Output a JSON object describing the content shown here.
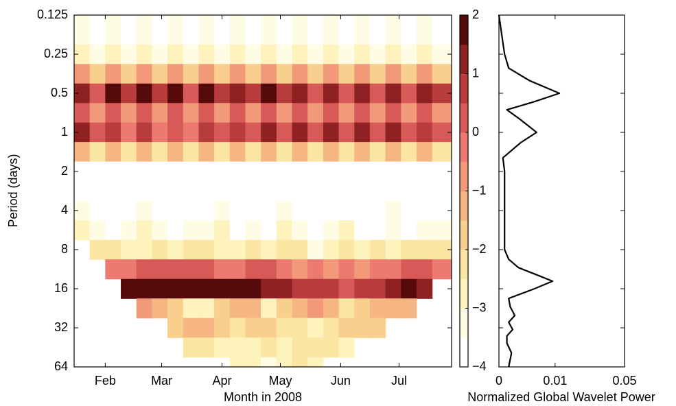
{
  "chart_data": [
    {
      "type": "heatmap",
      "x_label": "Month in 2008",
      "y_label": "Period (days)",
      "xlim": [
        16,
        210
      ],
      "xticks": [
        {
          "value": 32,
          "label": "Feb"
        },
        {
          "value": 61,
          "label": "Mar"
        },
        {
          "value": 92,
          "label": "Apr"
        },
        {
          "value": 122,
          "label": "May"
        },
        {
          "value": 153,
          "label": "Jun"
        },
        {
          "value": 183,
          "label": "Jul"
        }
      ],
      "ylim": [
        0.125,
        64
      ],
      "yscale": "log",
      "y_inverted": true,
      "yticks": [
        0.125,
        0.25,
        0.5,
        1,
        2,
        4,
        8,
        16,
        32,
        64
      ],
      "heatmap": {
        "x": [
          20,
          28,
          36,
          44,
          52,
          60,
          68,
          76,
          84,
          92,
          100,
          108,
          116,
          124,
          132,
          140,
          148,
          156,
          164,
          172,
          180,
          188,
          196,
          204
        ],
        "periods": [
          0.125,
          0.177,
          0.25,
          0.354,
          0.5,
          0.707,
          1,
          1.41,
          2,
          2.83,
          4,
          5.66,
          8,
          11.3,
          16,
          22.6,
          32,
          45.3,
          64
        ],
        "z": [
          [
            -3.3,
            -3.8,
            -3.3,
            -3.8,
            -3.3,
            -3.8,
            -3.3,
            -3.8,
            -3.3,
            -3.8,
            -3.3,
            -3.8,
            -3.3,
            -3.8,
            -3.3,
            -3.8,
            -3.3,
            -3.8,
            -3.3,
            -3.8,
            -3.3,
            -3.8,
            -3.3,
            -3.8
          ],
          [
            -3.2,
            -3.7,
            -3.2,
            -3.7,
            -3.2,
            -3.7,
            -3.2,
            -3.7,
            -3.2,
            -3.7,
            -3.2,
            -3.7,
            -3.2,
            -3.7,
            -3.2,
            -3.7,
            -3.2,
            -3.7,
            -3.2,
            -3.7,
            -3.2,
            -3.7,
            -3.2,
            -3.7
          ],
          [
            -2.6,
            -3.4,
            -2.6,
            -3.4,
            -2.6,
            -3.4,
            -2.6,
            -3.4,
            -2.6,
            -3.4,
            -2.6,
            -3.4,
            -2.6,
            -3.4,
            -2.6,
            -3.4,
            -2.6,
            -3.4,
            -2.6,
            -3.4,
            -2.6,
            -3.4,
            -2.6,
            -3.4
          ],
          [
            -0.8,
            -1.7,
            -0.8,
            -1.7,
            -0.8,
            -1.7,
            -0.8,
            -1.7,
            -0.8,
            -1.7,
            -0.8,
            -1.7,
            -0.8,
            -1.7,
            -0.8,
            -1.7,
            -0.8,
            -1.7,
            -0.8,
            -1.7,
            -0.8,
            -1.7,
            -0.8,
            -1.7
          ],
          [
            1.4,
            0.4,
            1.6,
            0.5,
            1.6,
            0.6,
            1.5,
            0.4,
            1.6,
            0.5,
            1.4,
            0.6,
            1.6,
            0.5,
            1.3,
            0.4,
            1.2,
            0.4,
            1.1,
            0.3,
            1.2,
            0.4,
            1.1,
            0.5
          ],
          [
            0.1,
            -0.8,
            0.1,
            -0.8,
            0.1,
            -0.8,
            0.1,
            -0.8,
            0.1,
            -0.8,
            0.1,
            -0.8,
            0.1,
            -0.8,
            0.1,
            -0.8,
            0.1,
            -0.8,
            0.1,
            -0.8,
            0.1,
            -0.8,
            0.1,
            -0.8
          ],
          [
            1.1,
            0.1,
            0.9,
            -0.1,
            0.6,
            -0.2,
            0.3,
            -0.3,
            0.8,
            0.0,
            0.9,
            0.1,
            1.3,
            0.2,
            1.2,
            0.1,
            1.0,
            0.0,
            1.2,
            0.1,
            1.1,
            0.0,
            0.9,
            0.2
          ],
          [
            -1.3,
            -2.1,
            -1.3,
            -2.1,
            -1.3,
            -2.1,
            -1.3,
            -2.1,
            -1.3,
            -2.1,
            -1.3,
            -2.1,
            -1.3,
            -2.1,
            -1.3,
            -2.1,
            -1.3,
            -2.1,
            -1.3,
            -2.1,
            -1.3,
            -2.1,
            -1.3,
            -2.1
          ],
          [
            -3.8,
            -3.8,
            -3.8,
            -3.8,
            -3.8,
            -3.8,
            -3.8,
            -3.8,
            -3.8,
            -3.8,
            -3.8,
            -3.8,
            -3.8,
            -3.8,
            -3.8,
            -3.8,
            -3.8,
            -3.8,
            -3.8,
            -3.8,
            -3.8,
            -3.8,
            -3.8,
            -3.8
          ],
          [
            -3.9,
            -3.9,
            -3.9,
            -3.9,
            -3.9,
            -3.9,
            -3.9,
            -3.9,
            -3.9,
            -3.9,
            -3.9,
            -3.9,
            -3.9,
            -3.9,
            -3.9,
            -3.9,
            -3.9,
            -3.9,
            -3.9,
            -3.9,
            -3.9,
            -3.9,
            -3.9,
            -3.9
          ],
          [
            -3.2,
            -3.7,
            -3.9,
            -3.9,
            -3.5,
            -3.9,
            -3.9,
            -3.9,
            -3.6,
            -3.3,
            -3.9,
            -3.9,
            -3.9,
            -3.4,
            -3.9,
            -3.9,
            -3.9,
            -3.6,
            -3.9,
            -3.9,
            -3.4,
            -3.9,
            -3.9,
            -3.9
          ],
          [
            -3.0,
            -3.3,
            -3.6,
            -3.4,
            -3.0,
            -3.5,
            -3.7,
            -3.3,
            -3.1,
            -2.9,
            -3.6,
            -3.2,
            -3.7,
            -3.0,
            -3.4,
            -3.6,
            -3.2,
            -2.9,
            -3.6,
            -3.8,
            -3.1,
            -3.6,
            -3.5,
            -3.2
          ],
          [
            null,
            -2.4,
            -2.2,
            -2.6,
            -2.8,
            -2.3,
            -2.7,
            -2.5,
            -2.1,
            -2.6,
            -2.9,
            -2.4,
            -2.6,
            -2.2,
            -2.5,
            -3.1,
            -2.6,
            -2.3,
            -2.7,
            -2.4,
            -2.9,
            -2.3,
            -2.5,
            -2.2
          ],
          [
            null,
            null,
            -0.4,
            -0.1,
            0.2,
            0.3,
            0.2,
            0.1,
            0.0,
            -0.2,
            -0.3,
            0.0,
            0.2,
            -0.1,
            -0.6,
            -0.5,
            -0.7,
            -0.4,
            -0.9,
            -0.5,
            -0.2,
            0.1,
            0.0,
            -0.3
          ],
          [
            null,
            null,
            null,
            1.6,
            1.7,
            1.8,
            1.8,
            1.7,
            1.7,
            1.6,
            1.6,
            1.5,
            1.3,
            1.0,
            0.7,
            0.6,
            0.5,
            0.4,
            0.5,
            0.8,
            1.2,
            1.5,
            1.3,
            null
          ],
          [
            null,
            null,
            null,
            null,
            -0.8,
            -1.1,
            -1.6,
            -2.7,
            -2.9,
            -1.8,
            -1.2,
            -1.1,
            -2.6,
            -1.6,
            -1.2,
            -1.0,
            -1.3,
            -2.4,
            -1.7,
            -1.4,
            -1.3,
            -1.5,
            null,
            null
          ],
          [
            null,
            null,
            null,
            null,
            null,
            null,
            -1.8,
            -1.5,
            -1.4,
            -1.7,
            -2.2,
            -1.9,
            -1.6,
            -2.3,
            -2.5,
            -2.8,
            -2.2,
            -1.8,
            -1.6,
            -1.9,
            null,
            null,
            null,
            null
          ],
          [
            null,
            null,
            null,
            null,
            null,
            null,
            null,
            -2.2,
            -2.5,
            -2.9,
            -3.0,
            -2.7,
            -2.4,
            -2.6,
            -2.3,
            -2.2,
            -2.5,
            -2.7,
            null,
            null,
            null,
            null,
            null,
            null
          ],
          [
            null,
            null,
            null,
            null,
            null,
            null,
            null,
            null,
            null,
            null,
            -2.6,
            -2.9,
            -3.2,
            -2.8,
            -2.5,
            -2.7,
            null,
            null,
            null,
            null,
            null,
            null,
            null,
            null
          ]
        ]
      },
      "colorbar": {
        "levels": [
          -4,
          -3.5,
          -3,
          -2.5,
          -2,
          -1.5,
          -1,
          -0.5,
          0,
          0.5,
          1,
          1.5,
          2
        ],
        "colors": [
          "#ffffff",
          "#fffce6",
          "#fff3bd",
          "#fbe5a3",
          "#f9cf8d",
          "#f6b684",
          "#f2997a",
          "#ec7a70",
          "#d85a58",
          "#b83c3b",
          "#8e2222",
          "#560a0a"
        ],
        "ticks": [
          {
            "value": -4,
            "label": "−4"
          },
          {
            "value": -3,
            "label": "−3"
          },
          {
            "value": -2,
            "label": "−2"
          },
          {
            "value": -1,
            "label": "−1"
          },
          0,
          1,
          2
        ]
      }
    },
    {
      "type": "line",
      "x_label": "Normalized Global Wavelet Power",
      "xlim": [
        0,
        0.05
      ],
      "xscale": "sqrt",
      "xticks": [
        0,
        0.01,
        0.05
      ],
      "color": "#000000",
      "period": [
        0.125,
        0.25,
        0.32,
        0.4,
        0.5,
        0.58,
        0.67,
        0.8,
        1,
        1.2,
        1.57,
        2,
        4,
        8,
        9.5,
        11,
        12.5,
        14,
        16,
        19,
        22,
        25.7,
        29,
        33,
        37,
        42,
        50,
        64
      ],
      "values": [
        0,
        0.0001,
        0.0003,
        0.003,
        0.0116,
        0.004,
        0.0002,
        0.0015,
        0.0045,
        0.0015,
        5e-05,
        0.0001,
        0.0001,
        0.0001,
        0.0003,
        0.0012,
        0.0045,
        0.0091,
        0.004,
        0.0003,
        0.0004,
        0.0008,
        0.0003,
        0.0006,
        0.0002,
        0.0002,
        0.0005,
        0.0003
      ]
    }
  ]
}
